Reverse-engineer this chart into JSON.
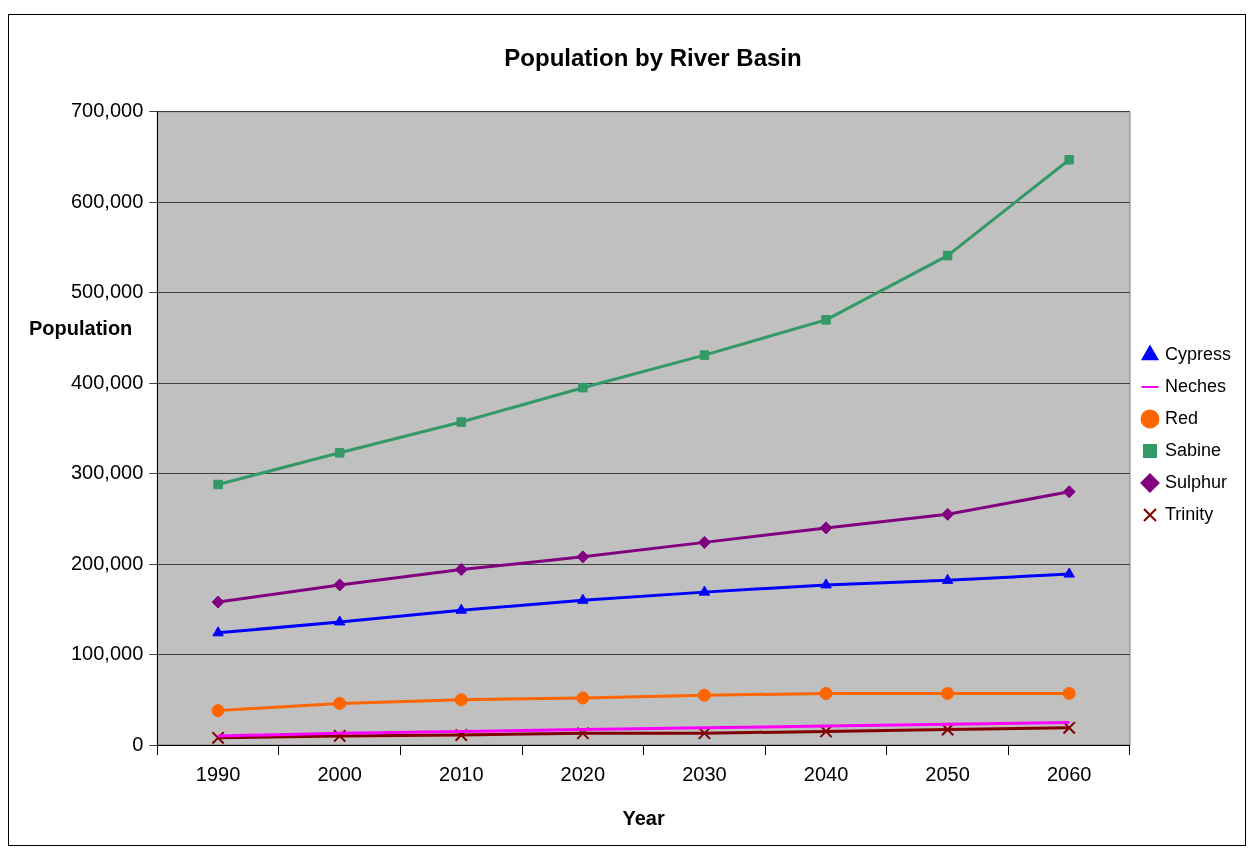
{
  "chart_data": {
    "type": "line",
    "title": "Population by River Basin",
    "xlabel": "Year",
    "ylabel": "Population",
    "categories": [
      "1990",
      "2000",
      "2010",
      "2020",
      "2030",
      "2040",
      "2050",
      "2060"
    ],
    "ylim": [
      0,
      700000
    ],
    "yticks": [
      0,
      {
        "value": 100000,
        "label": "100,000"
      },
      {
        "value": 200000,
        "label": "200,000"
      },
      {
        "value": 300000,
        "label": "300,000"
      },
      {
        "value": 400000,
        "label": "400,000"
      },
      {
        "value": 500000,
        "label": "500,000"
      },
      {
        "value": 600000,
        "label": "600,000"
      },
      {
        "value": 700000,
        "label": "700,000"
      }
    ],
    "grid": "y",
    "legend": "right",
    "series": [
      {
        "name": "Cypress",
        "color": "#0000ff",
        "marker": "triangle",
        "values": [
          124000,
          136000,
          149000,
          160000,
          169000,
          177000,
          182000,
          189000
        ]
      },
      {
        "name": "Neches",
        "color": "#ff00ff",
        "marker": "none",
        "values": [
          10000,
          13000,
          15000,
          17000,
          19000,
          21000,
          23000,
          25000
        ]
      },
      {
        "name": "Red",
        "color": "#ff6600",
        "marker": "circle",
        "values": [
          38000,
          46000,
          50000,
          52000,
          55000,
          57000,
          57000,
          57000
        ]
      },
      {
        "name": "Sabine",
        "color": "#339966",
        "marker": "square",
        "values": [
          288000,
          323000,
          357000,
          395000,
          431000,
          470000,
          541000,
          647000
        ]
      },
      {
        "name": "Sulphur",
        "color": "#800080",
        "marker": "diamond",
        "values": [
          158000,
          177000,
          194000,
          208000,
          224000,
          240000,
          255000,
          280000
        ]
      },
      {
        "name": "Trinity",
        "color": "#800000",
        "marker": "cross",
        "values": [
          8000,
          10000,
          11000,
          13000,
          13000,
          15000,
          17000,
          19000
        ]
      }
    ]
  }
}
